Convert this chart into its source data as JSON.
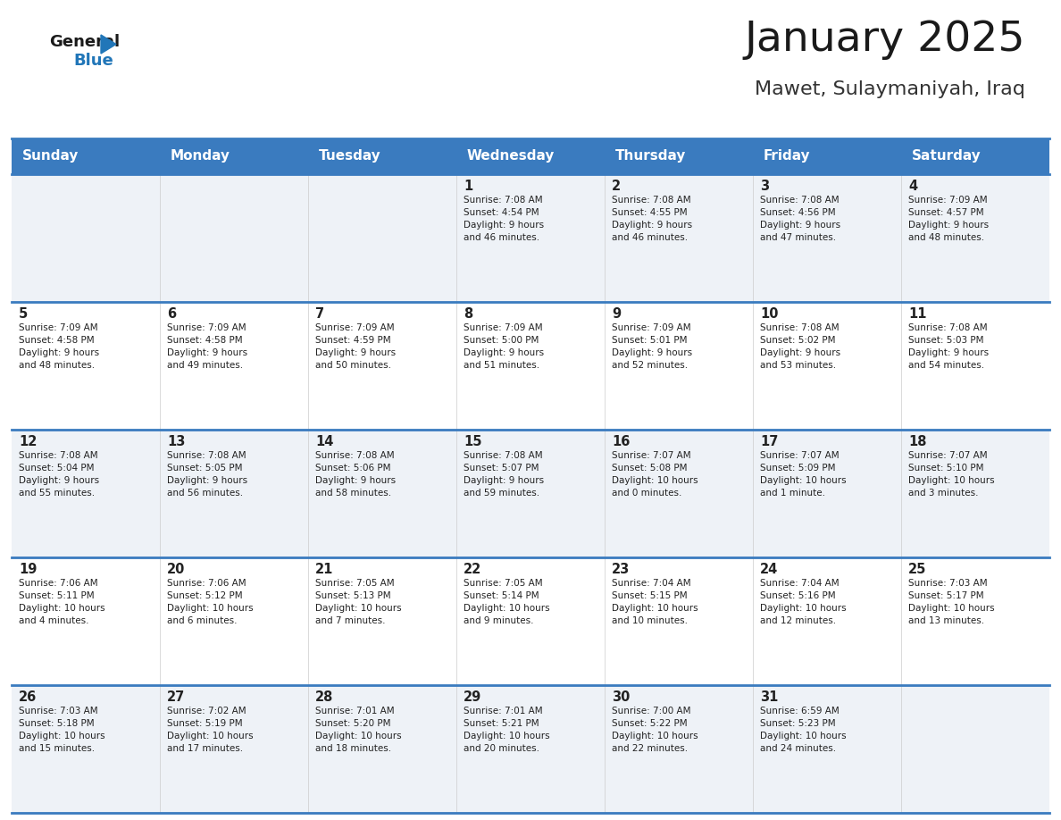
{
  "title": "January 2025",
  "subtitle": "Mawet, Sulaymaniyah, Iraq",
  "days_of_week": [
    "Sunday",
    "Monday",
    "Tuesday",
    "Wednesday",
    "Thursday",
    "Friday",
    "Saturday"
  ],
  "header_bg": "#3a7bbf",
  "header_text": "#ffffff",
  "cell_bg_odd": "#eef2f7",
  "cell_bg_even": "#ffffff",
  "row_separator_color": "#3a7bbf",
  "text_color": "#222222",
  "title_color": "#1a1a1a",
  "subtitle_color": "#333333",
  "logo_general_color": "#1a1a1a",
  "logo_blue_color": "#2176b8",
  "logo_triangle_color": "#2176b8",
  "calendar_data": [
    [
      {
        "day": null,
        "info": null
      },
      {
        "day": null,
        "info": null
      },
      {
        "day": null,
        "info": null
      },
      {
        "day": 1,
        "info": "Sunrise: 7:08 AM\nSunset: 4:54 PM\nDaylight: 9 hours\nand 46 minutes."
      },
      {
        "day": 2,
        "info": "Sunrise: 7:08 AM\nSunset: 4:55 PM\nDaylight: 9 hours\nand 46 minutes."
      },
      {
        "day": 3,
        "info": "Sunrise: 7:08 AM\nSunset: 4:56 PM\nDaylight: 9 hours\nand 47 minutes."
      },
      {
        "day": 4,
        "info": "Sunrise: 7:09 AM\nSunset: 4:57 PM\nDaylight: 9 hours\nand 48 minutes."
      }
    ],
    [
      {
        "day": 5,
        "info": "Sunrise: 7:09 AM\nSunset: 4:58 PM\nDaylight: 9 hours\nand 48 minutes."
      },
      {
        "day": 6,
        "info": "Sunrise: 7:09 AM\nSunset: 4:58 PM\nDaylight: 9 hours\nand 49 minutes."
      },
      {
        "day": 7,
        "info": "Sunrise: 7:09 AM\nSunset: 4:59 PM\nDaylight: 9 hours\nand 50 minutes."
      },
      {
        "day": 8,
        "info": "Sunrise: 7:09 AM\nSunset: 5:00 PM\nDaylight: 9 hours\nand 51 minutes."
      },
      {
        "day": 9,
        "info": "Sunrise: 7:09 AM\nSunset: 5:01 PM\nDaylight: 9 hours\nand 52 minutes."
      },
      {
        "day": 10,
        "info": "Sunrise: 7:08 AM\nSunset: 5:02 PM\nDaylight: 9 hours\nand 53 minutes."
      },
      {
        "day": 11,
        "info": "Sunrise: 7:08 AM\nSunset: 5:03 PM\nDaylight: 9 hours\nand 54 minutes."
      }
    ],
    [
      {
        "day": 12,
        "info": "Sunrise: 7:08 AM\nSunset: 5:04 PM\nDaylight: 9 hours\nand 55 minutes."
      },
      {
        "day": 13,
        "info": "Sunrise: 7:08 AM\nSunset: 5:05 PM\nDaylight: 9 hours\nand 56 minutes."
      },
      {
        "day": 14,
        "info": "Sunrise: 7:08 AM\nSunset: 5:06 PM\nDaylight: 9 hours\nand 58 minutes."
      },
      {
        "day": 15,
        "info": "Sunrise: 7:08 AM\nSunset: 5:07 PM\nDaylight: 9 hours\nand 59 minutes."
      },
      {
        "day": 16,
        "info": "Sunrise: 7:07 AM\nSunset: 5:08 PM\nDaylight: 10 hours\nand 0 minutes."
      },
      {
        "day": 17,
        "info": "Sunrise: 7:07 AM\nSunset: 5:09 PM\nDaylight: 10 hours\nand 1 minute."
      },
      {
        "day": 18,
        "info": "Sunrise: 7:07 AM\nSunset: 5:10 PM\nDaylight: 10 hours\nand 3 minutes."
      }
    ],
    [
      {
        "day": 19,
        "info": "Sunrise: 7:06 AM\nSunset: 5:11 PM\nDaylight: 10 hours\nand 4 minutes."
      },
      {
        "day": 20,
        "info": "Sunrise: 7:06 AM\nSunset: 5:12 PM\nDaylight: 10 hours\nand 6 minutes."
      },
      {
        "day": 21,
        "info": "Sunrise: 7:05 AM\nSunset: 5:13 PM\nDaylight: 10 hours\nand 7 minutes."
      },
      {
        "day": 22,
        "info": "Sunrise: 7:05 AM\nSunset: 5:14 PM\nDaylight: 10 hours\nand 9 minutes."
      },
      {
        "day": 23,
        "info": "Sunrise: 7:04 AM\nSunset: 5:15 PM\nDaylight: 10 hours\nand 10 minutes."
      },
      {
        "day": 24,
        "info": "Sunrise: 7:04 AM\nSunset: 5:16 PM\nDaylight: 10 hours\nand 12 minutes."
      },
      {
        "day": 25,
        "info": "Sunrise: 7:03 AM\nSunset: 5:17 PM\nDaylight: 10 hours\nand 13 minutes."
      }
    ],
    [
      {
        "day": 26,
        "info": "Sunrise: 7:03 AM\nSunset: 5:18 PM\nDaylight: 10 hours\nand 15 minutes."
      },
      {
        "day": 27,
        "info": "Sunrise: 7:02 AM\nSunset: 5:19 PM\nDaylight: 10 hours\nand 17 minutes."
      },
      {
        "day": 28,
        "info": "Sunrise: 7:01 AM\nSunset: 5:20 PM\nDaylight: 10 hours\nand 18 minutes."
      },
      {
        "day": 29,
        "info": "Sunrise: 7:01 AM\nSunset: 5:21 PM\nDaylight: 10 hours\nand 20 minutes."
      },
      {
        "day": 30,
        "info": "Sunrise: 7:00 AM\nSunset: 5:22 PM\nDaylight: 10 hours\nand 22 minutes."
      },
      {
        "day": 31,
        "info": "Sunrise: 6:59 AM\nSunset: 5:23 PM\nDaylight: 10 hours\nand 24 minutes."
      },
      {
        "day": null,
        "info": null
      }
    ]
  ]
}
